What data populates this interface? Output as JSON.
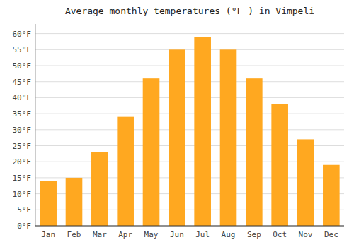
{
  "chart_data": {
    "type": "bar",
    "title": "Average monthly temperatures (°F ) in Vimpeli",
    "categories": [
      "Jan",
      "Feb",
      "Mar",
      "Apr",
      "May",
      "Jun",
      "Jul",
      "Aug",
      "Sep",
      "Oct",
      "Nov",
      "Dec"
    ],
    "values": [
      14,
      15,
      23,
      34,
      46,
      55,
      59,
      55,
      46,
      38,
      27,
      19
    ],
    "color": "#FFA820",
    "ylim": [
      0,
      63
    ],
    "yticks": [
      {
        "value": 0,
        "label": "0°F"
      },
      {
        "value": 5,
        "label": "5°F"
      },
      {
        "value": 10,
        "label": "10°F"
      },
      {
        "value": 15,
        "label": "15°F"
      },
      {
        "value": 20,
        "label": "20°F"
      },
      {
        "value": 25,
        "label": "25°F"
      },
      {
        "value": 30,
        "label": "30°F"
      },
      {
        "value": 35,
        "label": "35°F"
      },
      {
        "value": 40,
        "label": "40°F"
      },
      {
        "value": 45,
        "label": "45°F"
      },
      {
        "value": 50,
        "label": "50°F"
      },
      {
        "value": 55,
        "label": "55°F"
      },
      {
        "value": 60,
        "label": "60°F"
      }
    ],
    "grid": true
  }
}
